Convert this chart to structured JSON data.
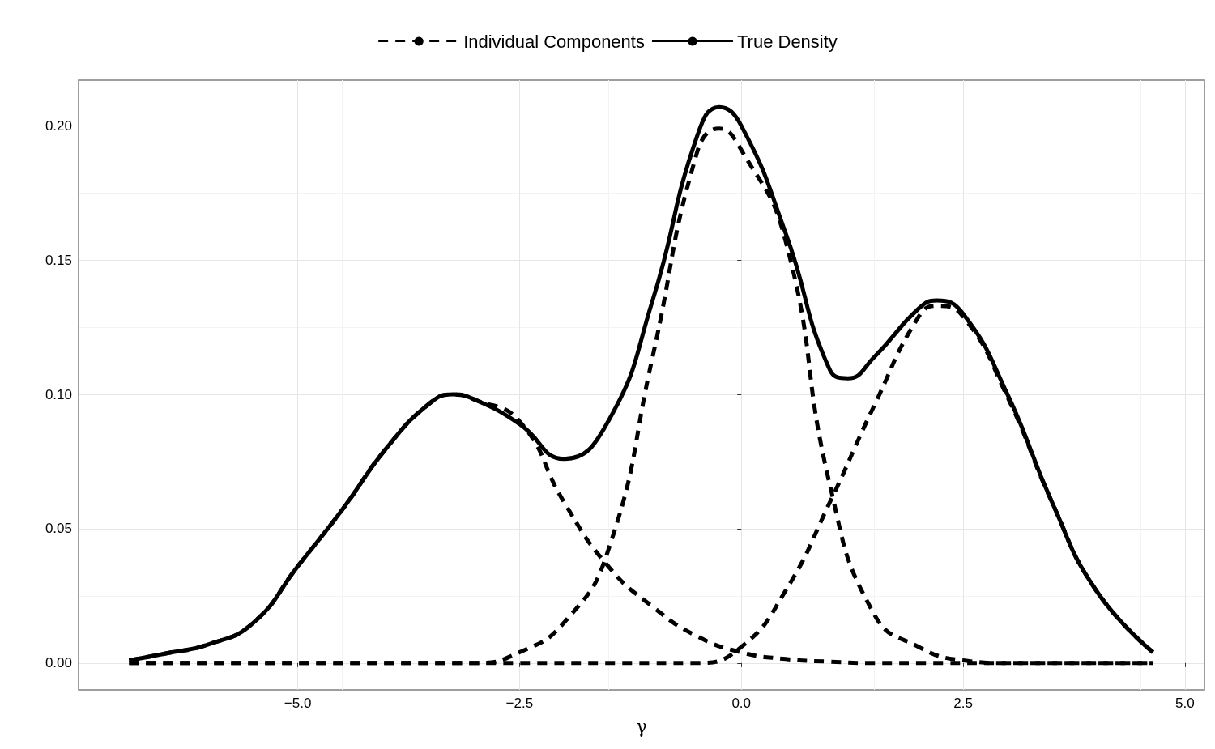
{
  "chart_data": {
    "type": "line",
    "xlabel": "γ",
    "legend": "top",
    "grid": true,
    "marker": "none",
    "xlim": [
      -7.47,
      5.22
    ],
    "ylim": [
      -0.01,
      0.217
    ],
    "xticks": [
      {
        "value": -5,
        "label": "−5.0"
      },
      {
        "value": -2.5,
        "label": "−2.5"
      },
      {
        "value": 0,
        "label": "0.0"
      },
      {
        "value": 2.5,
        "label": "2.5"
      },
      {
        "value": 5,
        "label": "5.0"
      }
    ],
    "yticks": [
      {
        "value": 0,
        "label": "0.00"
      },
      {
        "value": 0.05,
        "label": "0.05"
      },
      {
        "value": 0.1,
        "label": "0.10"
      },
      {
        "value": 0.15,
        "label": "0.15"
      },
      {
        "value": 0.2,
        "label": "0.20"
      }
    ],
    "series": [
      {
        "name": "Individual Components",
        "color": "#000000",
        "line_style": "dashed",
        "x": [
          -6.9,
          -6.5,
          -6,
          -5.5,
          -5,
          -4.5,
          -4,
          -3.5,
          -3.25,
          -3,
          -2.5,
          -2,
          -1.5,
          -1,
          -0.5,
          0,
          0.5,
          1,
          1.5,
          2,
          3,
          4.64
        ],
        "values": [
          0.001,
          0.0035,
          0.007,
          0.015,
          0.036,
          0.057,
          0.08,
          0.097,
          0.1,
          0.098,
          0.09,
          0.06,
          0.036,
          0.021,
          0.01,
          0.004,
          0.0015,
          0.0005,
          0,
          0,
          0,
          0
        ]
      },
      {
        "color": "#000000",
        "line_style": "dashed",
        "x": [
          -6.9,
          -4,
          -3,
          -2.5,
          -2,
          -1.5,
          -1,
          -0.5,
          -0.25,
          0,
          0.5,
          1,
          1.5,
          2,
          2.5,
          3,
          4.64
        ],
        "values": [
          0,
          0,
          0,
          0.004,
          0.015,
          0.042,
          0.114,
          0.19,
          0.199,
          0.191,
          0.157,
          0.066,
          0.018,
          0.006,
          0.001,
          0,
          0
        ]
      },
      {
        "color": "#000000",
        "line_style": "dashed",
        "x": [
          -6.9,
          -1,
          -0.5,
          0,
          0.5,
          1,
          1.5,
          2,
          2.2,
          2.5,
          3,
          3.5,
          4,
          4.64
        ],
        "values": [
          0,
          0,
          0,
          0.006,
          0.027,
          0.06,
          0.096,
          0.129,
          0.133,
          0.129,
          0.099,
          0.06,
          0.027,
          0.004
        ]
      },
      {
        "name": "True Density",
        "color": "#000000",
        "line_style": "solid",
        "x": [
          -6.9,
          -6.5,
          -6,
          -5.5,
          -5,
          -4.5,
          -4,
          -3.5,
          -3.25,
          -3,
          -2.5,
          -2,
          -1.5,
          -1,
          -0.5,
          -0.25,
          0,
          0.5,
          1,
          1.2,
          1.5,
          2,
          2.2,
          2.5,
          3,
          3.5,
          4,
          4.64
        ],
        "values": [
          0.001,
          0.0035,
          0.007,
          0.015,
          0.036,
          0.057,
          0.08,
          0.097,
          0.1,
          0.098,
          0.089,
          0.076,
          0.09,
          0.135,
          0.196,
          0.207,
          0.2,
          0.16,
          0.109,
          0.106,
          0.114,
          0.132,
          0.135,
          0.13,
          0.1,
          0.06,
          0.027,
          0.004
        ]
      }
    ]
  }
}
